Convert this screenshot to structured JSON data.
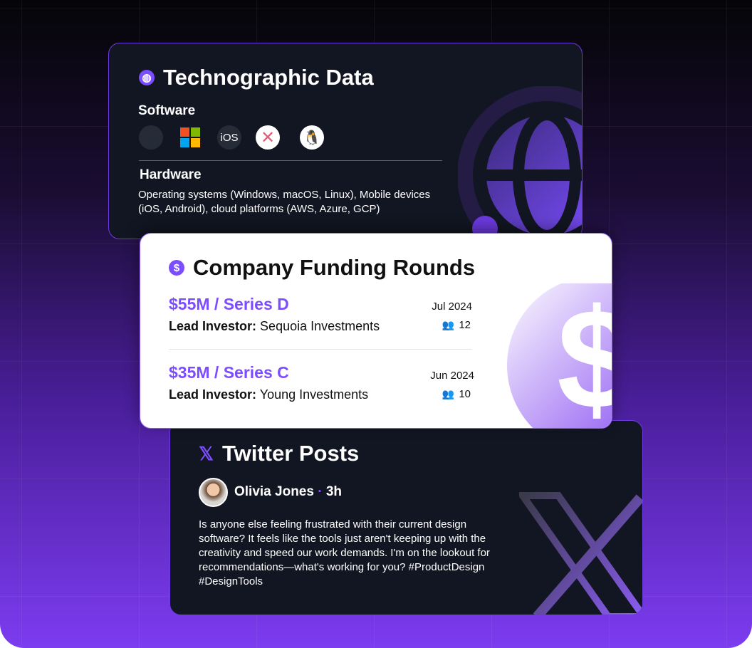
{
  "techno": {
    "title": "Technographic Data",
    "icon": "globe-icon",
    "software_label": "Software",
    "software_icons": [
      "apple-icon",
      "windows-icon",
      "ios-icon",
      "macos-x-icon",
      "linux-icon"
    ],
    "ios_text": "iOS",
    "hardware_label": "Hardware",
    "hardware_text": "Operating systems (Windows, macOS, Linux), Mobile devices (iOS, Android), cloud platforms (AWS, Azure, GCP)"
  },
  "funding": {
    "title": "Company Funding Rounds",
    "icon": "dollar-icon",
    "lead_label": "Lead Investor:",
    "rounds": [
      {
        "amount": "$55M / Series D",
        "investor": "Sequoia Investments",
        "date": "Jul 2024",
        "investors_count": "12"
      },
      {
        "amount": "$35M / Series C",
        "investor": "Young Investments",
        "date": "Jun 2024",
        "investors_count": "10"
      }
    ]
  },
  "twitter": {
    "title": "Twitter Posts",
    "icon": "x-logo-icon",
    "author": "Olivia Jones",
    "time": "3h",
    "separator": "·",
    "post": "Is anyone else feeling frustrated with their current design software? It feels like the tools just aren't keeping up with the creativity and speed our work demands. I'm on the lookout for recommendations—what's working for you? #ProductDesign #DesignTools"
  },
  "colors": {
    "accent": "#7c4dff",
    "dark_card": "#121622"
  }
}
